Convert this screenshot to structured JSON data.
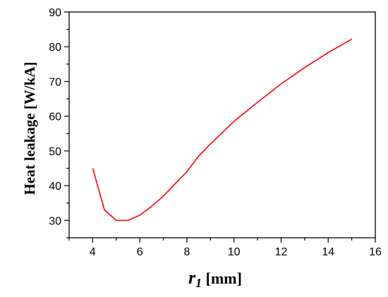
{
  "chart_data": {
    "type": "line",
    "xlabel_symbol": "r",
    "xlabel_subscript": "1",
    "xlabel_unit": " [mm]",
    "ylabel": "Heat leakage  [W/kA]",
    "xlim": [
      3,
      16
    ],
    "ylim": [
      25,
      90
    ],
    "xticks": [
      4,
      6,
      8,
      10,
      12,
      14,
      16
    ],
    "yticks": [
      30,
      40,
      50,
      60,
      70,
      80,
      90
    ],
    "grid": false,
    "series": [
      {
        "color": "#ff0000",
        "x": [
          4.0,
          4.5,
          5.0,
          5.5,
          6.0,
          6.5,
          7.0,
          7.5,
          8.0,
          8.5,
          9.0,
          10.0,
          11.0,
          12.0,
          13.0,
          14.0,
          15.0
        ],
        "y": [
          45.0,
          33.0,
          30.0,
          30.0,
          31.5,
          34.0,
          37.0,
          40.5,
          44.0,
          48.5,
          52.0,
          58.5,
          64.0,
          69.3,
          74.0,
          78.3,
          82.2
        ]
      }
    ]
  }
}
